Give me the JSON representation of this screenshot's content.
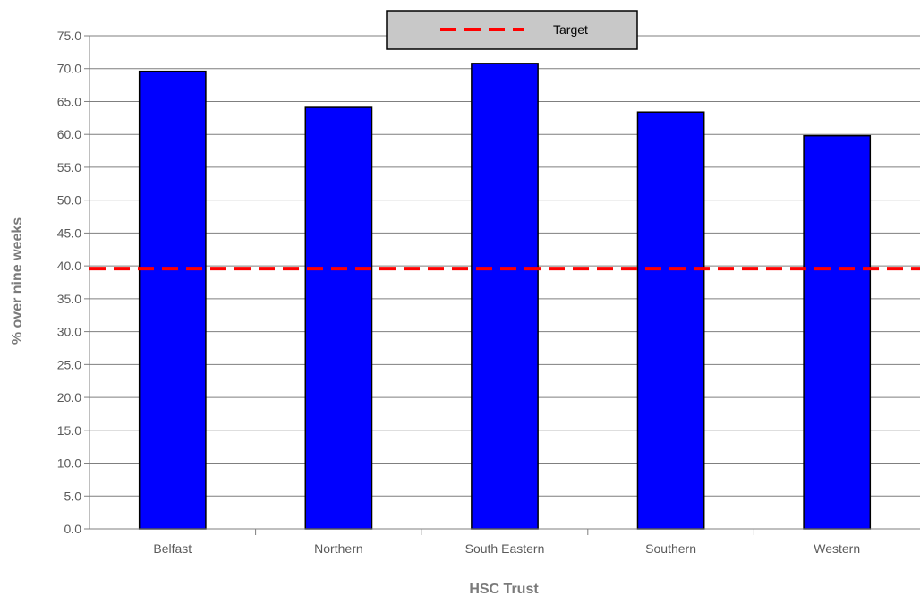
{
  "chart_data": {
    "type": "bar",
    "categories": [
      "Belfast",
      "Northern",
      "South Eastern",
      "Southern",
      "Western"
    ],
    "series": [
      {
        "values": [
          69.6,
          64.1,
          70.8,
          63.4,
          59.8
        ],
        "color": "#0000ff"
      }
    ],
    "target": {
      "name": "Target",
      "value": 39.6,
      "color": "#ff0000",
      "style": "dashed"
    },
    "xlabel": "HSC Trust",
    "ylabel": "% over nine weeks",
    "ylim": [
      0,
      75
    ],
    "ytick_step": 5,
    "ytick_labels": [
      "0.0",
      "5.0",
      "10.0",
      "15.0",
      "20.0",
      "25.0",
      "30.0",
      "35.0",
      "40.0",
      "45.0",
      "50.0",
      "55.0",
      "60.0",
      "65.0",
      "70.0",
      "75.0"
    ],
    "grid": true,
    "legend": {
      "position": "top-center",
      "entries": [
        "Target"
      ],
      "background": "#c8c8c8"
    }
  }
}
